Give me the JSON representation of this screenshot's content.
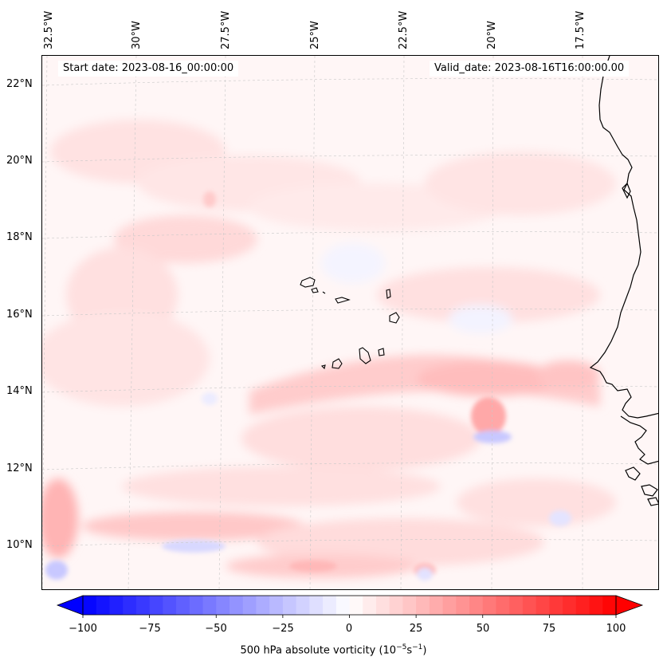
{
  "map": {
    "start_date": "Start date: 2023-08-16_00:00:00",
    "valid_date": "Valid_date: 2023-08-16T16:00:00.00",
    "longitude_labels": [
      "32.5°W",
      "30°W",
      "27.5°W",
      "25°W",
      "22.5°W",
      "20°W",
      "17.5°W"
    ],
    "latitude_labels": [
      "22°N",
      "20°N",
      "18°N",
      "16°N",
      "14°N",
      "12°N",
      "10°N"
    ],
    "region": "Cabo Verde islands and West African coast",
    "field": "500 hPa absolute vorticity"
  },
  "colorbar": {
    "label_main": "500 hPa absolute vorticity (10",
    "label_exp1": "−5",
    "label_mid": "s",
    "label_exp2": "−1",
    "label_end": ")",
    "ticks": [
      "−100",
      "−75",
      "−50",
      "−25",
      "0",
      "25",
      "50",
      "75",
      "100"
    ],
    "min": -100,
    "max": 100,
    "levels": 40,
    "colors": {
      "low": "#0000ff",
      "mid": "#ffffff",
      "high": "#ff0000"
    }
  }
}
